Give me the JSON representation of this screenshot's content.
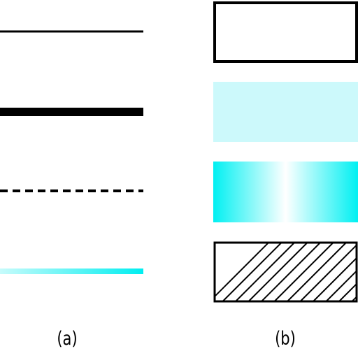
{
  "panels": {
    "a": {
      "label": "(a)"
    },
    "b": {
      "label": "(b)"
    }
  },
  "colors": {
    "stroke": "#000000",
    "light_cyan_fill": "#ccf9fb",
    "cyan": "#00f0f2",
    "gradient_line_start": "#c6fbfb",
    "gradient_line_end": "#00eef0",
    "background": "#ffffff"
  },
  "line_styles": [
    "thin-solid",
    "thick-solid",
    "dashed",
    "gradient"
  ],
  "fill_styles": [
    "outline-only",
    "solid-light-cyan",
    "cyan-white-gradient",
    "diagonal-hatch"
  ]
}
